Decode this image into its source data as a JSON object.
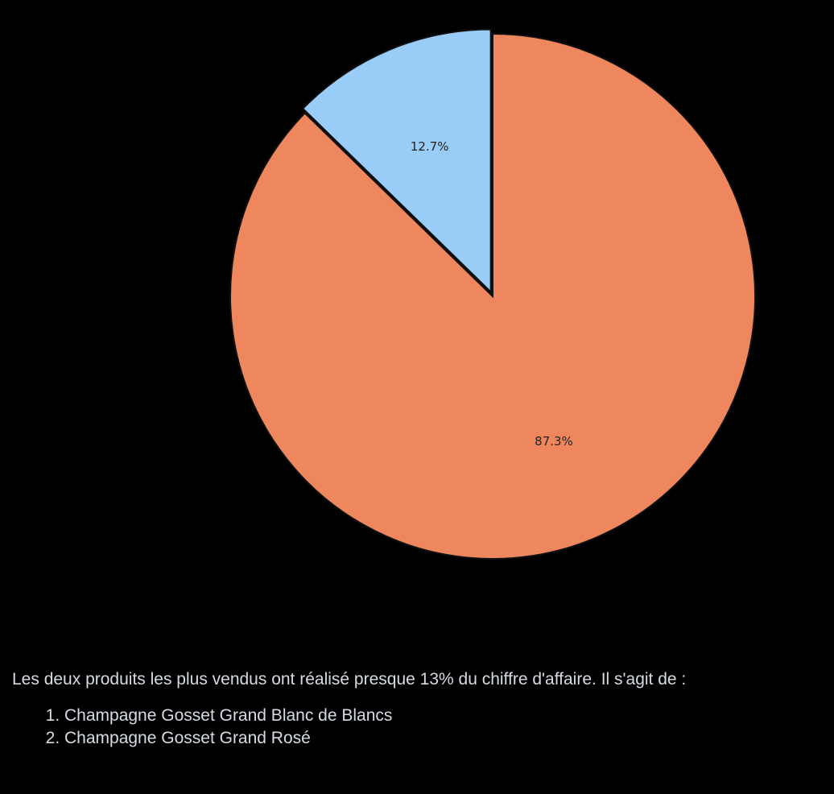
{
  "chart_data": {
    "type": "pie",
    "slices": [
      {
        "label": "12.7%",
        "value": 12.7,
        "color": "#99ccf7"
      },
      {
        "label": "87.3%",
        "value": 87.3,
        "color": "#ef875e"
      }
    ],
    "start_angle_deg": 90,
    "direction": "counterclockwise",
    "edge_color": "#111111",
    "background": "#000000"
  },
  "summary": {
    "text": "Les deux produits les plus vendus ont réalisé presque 13% du chiffre d'affaire. Il s'agit de :",
    "items": [
      "Champagne Gosset Grand Blanc de Blancs",
      "Champagne Gosset Grand Rosé"
    ]
  }
}
